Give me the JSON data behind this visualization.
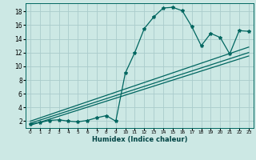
{
  "bg_color": "#cce8e4",
  "grid_color": "#aacccc",
  "line_color": "#006660",
  "xlabel": "Humidex (Indice chaleur)",
  "xlim": [
    -0.5,
    23.5
  ],
  "ylim": [
    1.0,
    19.2
  ],
  "xticks": [
    0,
    1,
    2,
    3,
    4,
    5,
    6,
    7,
    8,
    9,
    10,
    11,
    12,
    13,
    14,
    15,
    16,
    17,
    18,
    19,
    20,
    21,
    22,
    23
  ],
  "yticks": [
    2,
    4,
    6,
    8,
    10,
    12,
    14,
    16,
    18
  ],
  "data_x": [
    0,
    1,
    2,
    3,
    4,
    5,
    6,
    7,
    8,
    9,
    10,
    11,
    12,
    13,
    14,
    15,
    16,
    17,
    18,
    19,
    20,
    21,
    22,
    23
  ],
  "data_y": [
    1.6,
    1.8,
    2.1,
    2.2,
    2.0,
    1.9,
    2.1,
    2.5,
    2.8,
    2.0,
    9.0,
    12.0,
    15.5,
    17.2,
    18.5,
    18.6,
    18.1,
    15.8,
    13.0,
    14.8,
    14.2,
    11.8,
    15.2,
    15.1
  ],
  "reg_lines": [
    [
      [
        0,
        23
      ],
      [
        1.4,
        11.5
      ]
    ],
    [
      [
        0,
        23
      ],
      [
        1.7,
        12.0
      ]
    ],
    [
      [
        0,
        23
      ],
      [
        2.0,
        12.8
      ]
    ]
  ]
}
